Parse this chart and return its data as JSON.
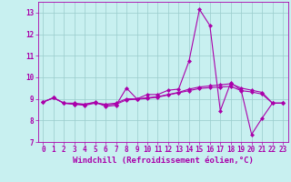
{
  "xlabel": "Windchill (Refroidissement éolien,°C)",
  "xlim": [
    -0.5,
    23.5
  ],
  "ylim": [
    7,
    13.5
  ],
  "yticks": [
    7,
    8,
    9,
    10,
    11,
    12,
    13
  ],
  "xticks": [
    0,
    1,
    2,
    3,
    4,
    5,
    6,
    7,
    8,
    9,
    10,
    11,
    12,
    13,
    14,
    15,
    16,
    17,
    18,
    19,
    20,
    21,
    22,
    23
  ],
  "background_color": "#c8f0f0",
  "line_color": "#aa00aa",
  "grid_color": "#99cccc",
  "lines": [
    {
      "x": [
        0,
        1,
        2,
        3,
        4,
        5,
        6,
        7,
        8,
        9,
        10,
        11,
        12,
        13,
        14,
        15,
        16,
        17,
        18,
        19,
        20,
        21,
        22,
        23
      ],
      "y": [
        8.85,
        9.05,
        8.8,
        8.8,
        8.75,
        8.85,
        8.65,
        8.7,
        9.5,
        9.0,
        9.2,
        9.2,
        9.4,
        9.45,
        10.75,
        13.15,
        12.4,
        8.45,
        9.75,
        9.4,
        7.35,
        8.1,
        8.8,
        8.8
      ]
    },
    {
      "x": [
        0,
        1,
        2,
        3,
        4,
        5,
        6,
        7,
        8,
        9,
        10,
        11,
        12,
        13,
        14,
        15,
        16,
        17,
        18,
        19,
        20,
        21,
        22,
        23
      ],
      "y": [
        8.85,
        9.05,
        8.8,
        8.75,
        8.7,
        8.8,
        8.75,
        8.8,
        9.0,
        9.0,
        9.05,
        9.1,
        9.2,
        9.3,
        9.45,
        9.55,
        9.6,
        9.65,
        9.7,
        9.5,
        9.4,
        9.3,
        8.8,
        8.8
      ]
    },
    {
      "x": [
        0,
        1,
        2,
        3,
        4,
        5,
        6,
        7,
        8,
        9,
        10,
        11,
        12,
        13,
        14,
        15,
        16,
        17,
        18,
        19,
        20,
        21,
        22,
        23
      ],
      "y": [
        8.85,
        9.05,
        8.8,
        8.75,
        8.75,
        8.82,
        8.72,
        8.75,
        8.95,
        8.98,
        9.02,
        9.08,
        9.18,
        9.28,
        9.38,
        9.48,
        9.52,
        9.55,
        9.58,
        9.38,
        9.32,
        9.22,
        8.8,
        8.8
      ]
    }
  ],
  "marker": "D",
  "markersize": 2.0,
  "linewidth": 0.8,
  "tick_fontsize": 5.5,
  "xlabel_fontsize": 6.5
}
